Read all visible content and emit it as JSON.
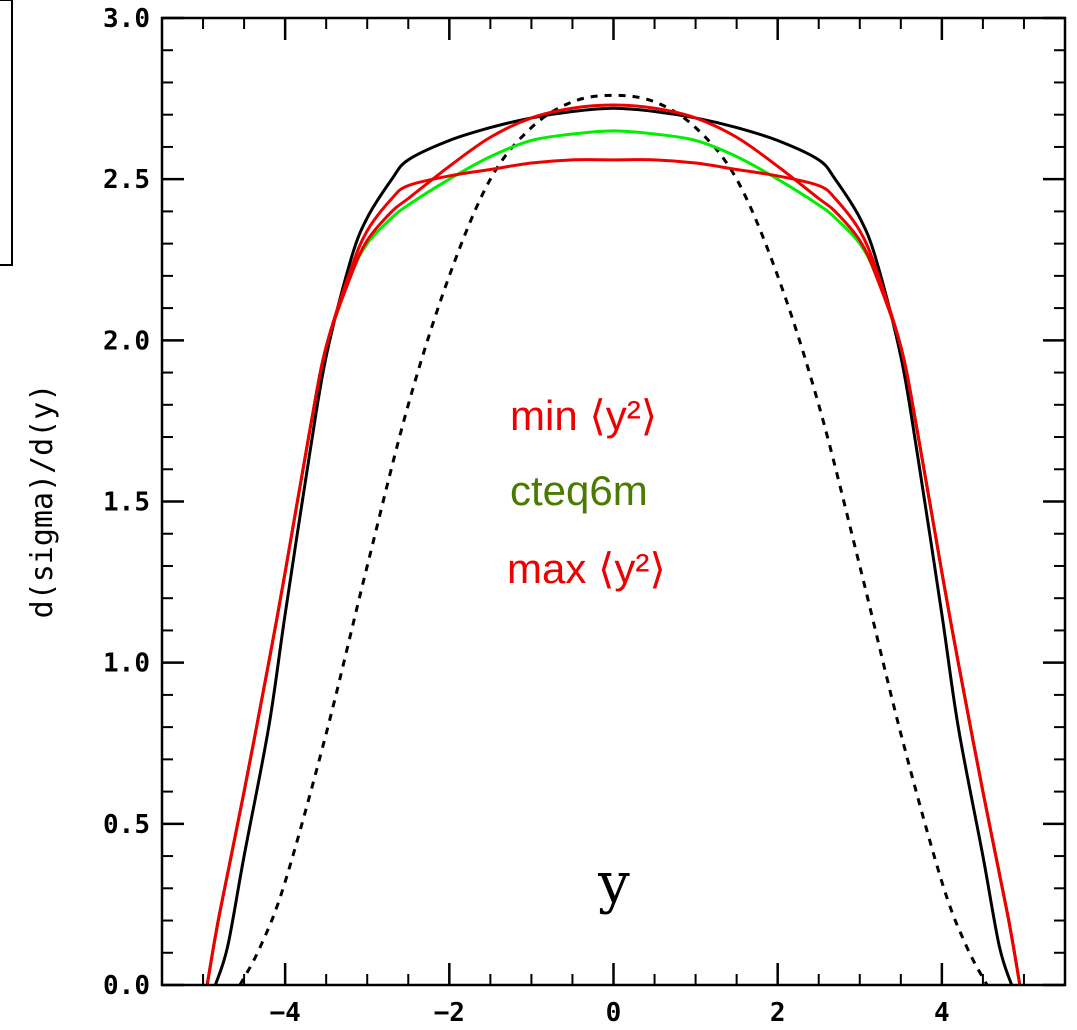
{
  "chart_data": {
    "type": "line",
    "title": "",
    "xlabel": "y",
    "ylabel": "d(sigma)/d(y)",
    "xlim": [
      -5.5,
      5.5
    ],
    "ylim": [
      0.0,
      3.0
    ],
    "x_ticks": [
      -4,
      -2,
      0,
      2,
      4
    ],
    "x_tick_labels": [
      "−4",
      "−2",
      "0",
      "2",
      "4"
    ],
    "y_ticks": [
      0.0,
      0.5,
      1.0,
      1.5,
      2.0,
      2.5,
      3.0
    ],
    "y_tick_labels": [
      "0.0",
      "0.5",
      "1.0",
      "1.5",
      "2.0",
      "2.5",
      "3.0"
    ],
    "grid": false,
    "legend": [
      {
        "text": "min ⟨y²⟩",
        "color": "#ee0000"
      },
      {
        "text": "cteq6m",
        "color": "#4a7a00"
      },
      {
        "text": "max ⟨y²⟩",
        "color": "#ee0000"
      }
    ],
    "series": [
      {
        "color": "#000000",
        "dash": "solid",
        "x": [
          -4.85,
          -4.7,
          -4.5,
          -4.2,
          -4.0,
          -3.7,
          -3.5,
          -3.2,
          -3.0,
          -2.7,
          -2.5,
          -2.0,
          -1.5,
          -1.0,
          -0.5,
          0.0,
          0.5,
          1.0,
          1.5,
          2.0,
          2.5,
          2.7,
          3.0,
          3.2,
          3.5,
          3.7,
          4.0,
          4.2,
          4.5,
          4.7,
          4.85
        ],
        "y": [
          0.0,
          0.12,
          0.4,
          0.8,
          1.15,
          1.65,
          1.95,
          2.25,
          2.38,
          2.5,
          2.56,
          2.62,
          2.66,
          2.69,
          2.71,
          2.72,
          2.71,
          2.69,
          2.66,
          2.62,
          2.56,
          2.5,
          2.38,
          2.25,
          1.95,
          1.65,
          1.15,
          0.8,
          0.4,
          0.12,
          0.0
        ]
      },
      {
        "color": "#000000",
        "dash": "dotted",
        "x": [
          -4.55,
          -4.3,
          -4.0,
          -3.5,
          -3.0,
          -2.5,
          -2.0,
          -1.5,
          -1.0,
          -0.5,
          0.0,
          0.5,
          1.0,
          1.5,
          2.0,
          2.5,
          3.0,
          3.5,
          4.0,
          4.3,
          4.55
        ],
        "y": [
          0.0,
          0.12,
          0.32,
          0.78,
          1.3,
          1.8,
          2.2,
          2.5,
          2.66,
          2.74,
          2.76,
          2.74,
          2.66,
          2.5,
          2.2,
          1.8,
          1.3,
          0.78,
          0.32,
          0.12,
          0.0
        ]
      },
      {
        "color": "#00ee00",
        "dash": "solid",
        "x": [
          -4.95,
          -4.8,
          -4.5,
          -4.2,
          -4.0,
          -3.7,
          -3.5,
          -3.2,
          -3.0,
          -2.7,
          -2.5,
          -2.0,
          -1.5,
          -1.0,
          -0.5,
          0.0,
          0.5,
          1.0,
          1.5,
          2.0,
          2.5,
          2.7,
          3.0,
          3.2,
          3.5,
          3.7,
          4.0,
          4.2,
          4.5,
          4.8,
          4.95
        ],
        "y": [
          0.0,
          0.22,
          0.6,
          1.0,
          1.28,
          1.72,
          1.98,
          2.2,
          2.3,
          2.38,
          2.42,
          2.5,
          2.57,
          2.62,
          2.64,
          2.65,
          2.64,
          2.62,
          2.57,
          2.5,
          2.42,
          2.38,
          2.3,
          2.2,
          1.98,
          1.72,
          1.28,
          1.0,
          0.6,
          0.22,
          0.0
        ]
      },
      {
        "color": "#ee0000",
        "dash": "solid",
        "x": [
          -4.95,
          -4.8,
          -4.5,
          -4.2,
          -4.0,
          -3.7,
          -3.5,
          -3.2,
          -3.0,
          -2.7,
          -2.5,
          -2.0,
          -1.5,
          -1.0,
          -0.5,
          0.0,
          0.5,
          1.0,
          1.5,
          2.0,
          2.5,
          2.7,
          3.0,
          3.2,
          3.5,
          3.7,
          4.0,
          4.2,
          4.5,
          4.8,
          4.95
        ],
        "y": [
          0.0,
          0.22,
          0.6,
          1.0,
          1.28,
          1.72,
          1.98,
          2.2,
          2.31,
          2.4,
          2.44,
          2.54,
          2.63,
          2.69,
          2.72,
          2.73,
          2.72,
          2.69,
          2.63,
          2.54,
          2.44,
          2.4,
          2.31,
          2.2,
          1.98,
          1.72,
          1.28,
          1.0,
          0.6,
          0.22,
          0.0
        ]
      },
      {
        "color": "#ee0000",
        "dash": "solid",
        "x": [
          -4.95,
          -4.8,
          -4.5,
          -4.2,
          -4.0,
          -3.7,
          -3.5,
          -3.2,
          -3.0,
          -2.7,
          -2.5,
          -2.0,
          -1.5,
          -1.0,
          -0.5,
          0.0,
          0.5,
          1.0,
          1.5,
          2.0,
          2.5,
          2.7,
          3.0,
          3.2,
          3.5,
          3.7,
          4.0,
          4.2,
          4.5,
          4.8,
          4.95
        ],
        "y": [
          0.0,
          0.22,
          0.6,
          1.0,
          1.28,
          1.72,
          1.98,
          2.22,
          2.34,
          2.44,
          2.48,
          2.51,
          2.53,
          2.55,
          2.56,
          2.56,
          2.56,
          2.55,
          2.53,
          2.51,
          2.48,
          2.44,
          2.34,
          2.22,
          1.98,
          1.72,
          1.28,
          1.0,
          0.6,
          0.22,
          0.0
        ]
      }
    ]
  }
}
